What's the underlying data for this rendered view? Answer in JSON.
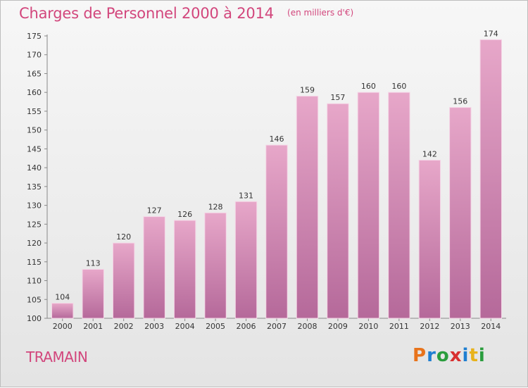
{
  "header": {
    "title": "Charges de Personnel 2000 à 2014",
    "subtitle": "(en milliers d'€)"
  },
  "commune": "TRAMAIN",
  "logo": {
    "text": "Proxiti",
    "letters": [
      "P",
      "r",
      "o",
      "x",
      "i",
      "t",
      "i"
    ],
    "colors": [
      "#e8731b",
      "#1f7fd1",
      "#2a9d3d",
      "#d83030",
      "#1f7fd1",
      "#e8b21b",
      "#2a9d3d"
    ]
  },
  "chart_data": {
    "type": "bar",
    "categories": [
      "2000",
      "2001",
      "2002",
      "2003",
      "2004",
      "2005",
      "2006",
      "2007",
      "2008",
      "2009",
      "2010",
      "2011",
      "2012",
      "2013",
      "2014"
    ],
    "values": [
      104,
      113,
      120,
      127,
      126,
      128,
      131,
      146,
      159,
      157,
      160,
      160,
      142,
      156,
      174
    ],
    "title": "Charges de Personnel 2000 à 2014",
    "subtitle": "(en milliers d'€)",
    "ylim": [
      100,
      175
    ],
    "yticks": [
      100,
      105,
      110,
      115,
      120,
      125,
      130,
      135,
      140,
      145,
      150,
      155,
      160,
      165,
      170,
      175
    ],
    "grid": false,
    "bar_color": "#d98cb5",
    "bar_color_dark": "#b86a97",
    "data_labels": true
  }
}
